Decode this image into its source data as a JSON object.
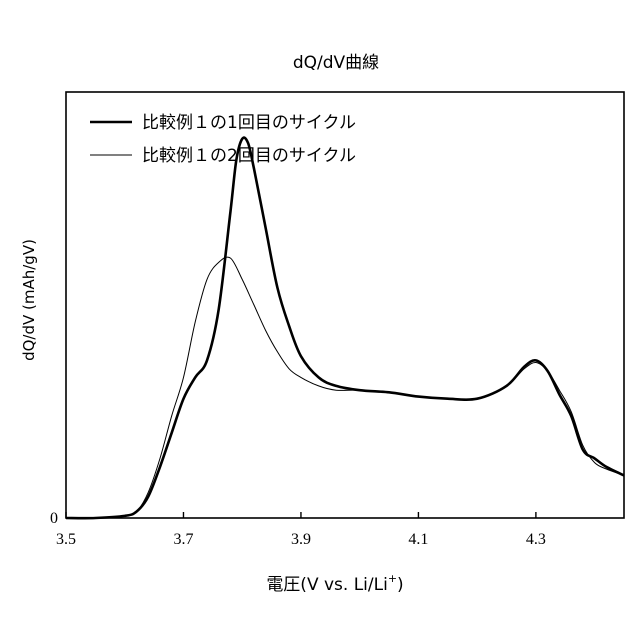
{
  "chart_data": {
    "type": "line",
    "title": "dQ/dV曲線",
    "xlabel": "電圧(V vs. Li/Li+)",
    "xlabel_main": "電圧(V vs. Li/Li",
    "xlabel_sup": "+",
    "xlabel_close": ")",
    "ylabel": "dQ/dV (mAh/gV)",
    "xlim": [
      3.5,
      4.45
    ],
    "ylim": [
      0,
      1.0
    ],
    "xticks": [
      3.5,
      3.7,
      3.9,
      4.1,
      4.3
    ],
    "xtick_labels": [
      "3.5",
      "3.7",
      "3.9",
      "4.1",
      "4.3"
    ],
    "yticks": [
      0
    ],
    "ytick_labels": [
      "0"
    ],
    "grid": false,
    "legend_position": "top-left",
    "series": [
      {
        "name": "比較例１の1回目のサイクル",
        "line_style": "thick",
        "x": [
          3.5,
          3.55,
          3.6,
          3.62,
          3.64,
          3.66,
          3.68,
          3.7,
          3.72,
          3.74,
          3.76,
          3.78,
          3.79,
          3.8,
          3.81,
          3.82,
          3.84,
          3.86,
          3.88,
          3.9,
          3.93,
          3.96,
          4.0,
          4.05,
          4.1,
          4.15,
          4.2,
          4.25,
          4.28,
          4.3,
          4.32,
          4.34,
          4.36,
          4.38,
          4.4,
          4.42,
          4.45
        ],
        "y": [
          0.0,
          0.0,
          0.005,
          0.015,
          0.05,
          0.12,
          0.2,
          0.28,
          0.33,
          0.37,
          0.49,
          0.72,
          0.84,
          0.89,
          0.88,
          0.82,
          0.68,
          0.54,
          0.45,
          0.38,
          0.33,
          0.31,
          0.3,
          0.295,
          0.285,
          0.28,
          0.28,
          0.31,
          0.355,
          0.37,
          0.345,
          0.29,
          0.24,
          0.16,
          0.14,
          0.12,
          0.1
        ]
      },
      {
        "name": "比較例１の2回目のサイクル",
        "line_style": "thin",
        "x": [
          3.5,
          3.55,
          3.6,
          3.62,
          3.64,
          3.66,
          3.68,
          3.7,
          3.72,
          3.74,
          3.76,
          3.78,
          3.8,
          3.82,
          3.84,
          3.86,
          3.88,
          3.9,
          3.93,
          3.96,
          4.0,
          4.05,
          4.1,
          4.15,
          4.2,
          4.25,
          4.28,
          4.3,
          4.32,
          4.34,
          4.36,
          4.38,
          4.4,
          4.42,
          4.45
        ],
        "y": [
          0.0,
          0.0,
          0.005,
          0.015,
          0.06,
          0.14,
          0.24,
          0.33,
          0.46,
          0.56,
          0.6,
          0.61,
          0.56,
          0.5,
          0.44,
          0.39,
          0.35,
          0.33,
          0.31,
          0.3,
          0.3,
          0.295,
          0.285,
          0.28,
          0.28,
          0.31,
          0.35,
          0.365,
          0.345,
          0.3,
          0.25,
          0.17,
          0.13,
          0.115,
          0.1
        ]
      }
    ]
  }
}
